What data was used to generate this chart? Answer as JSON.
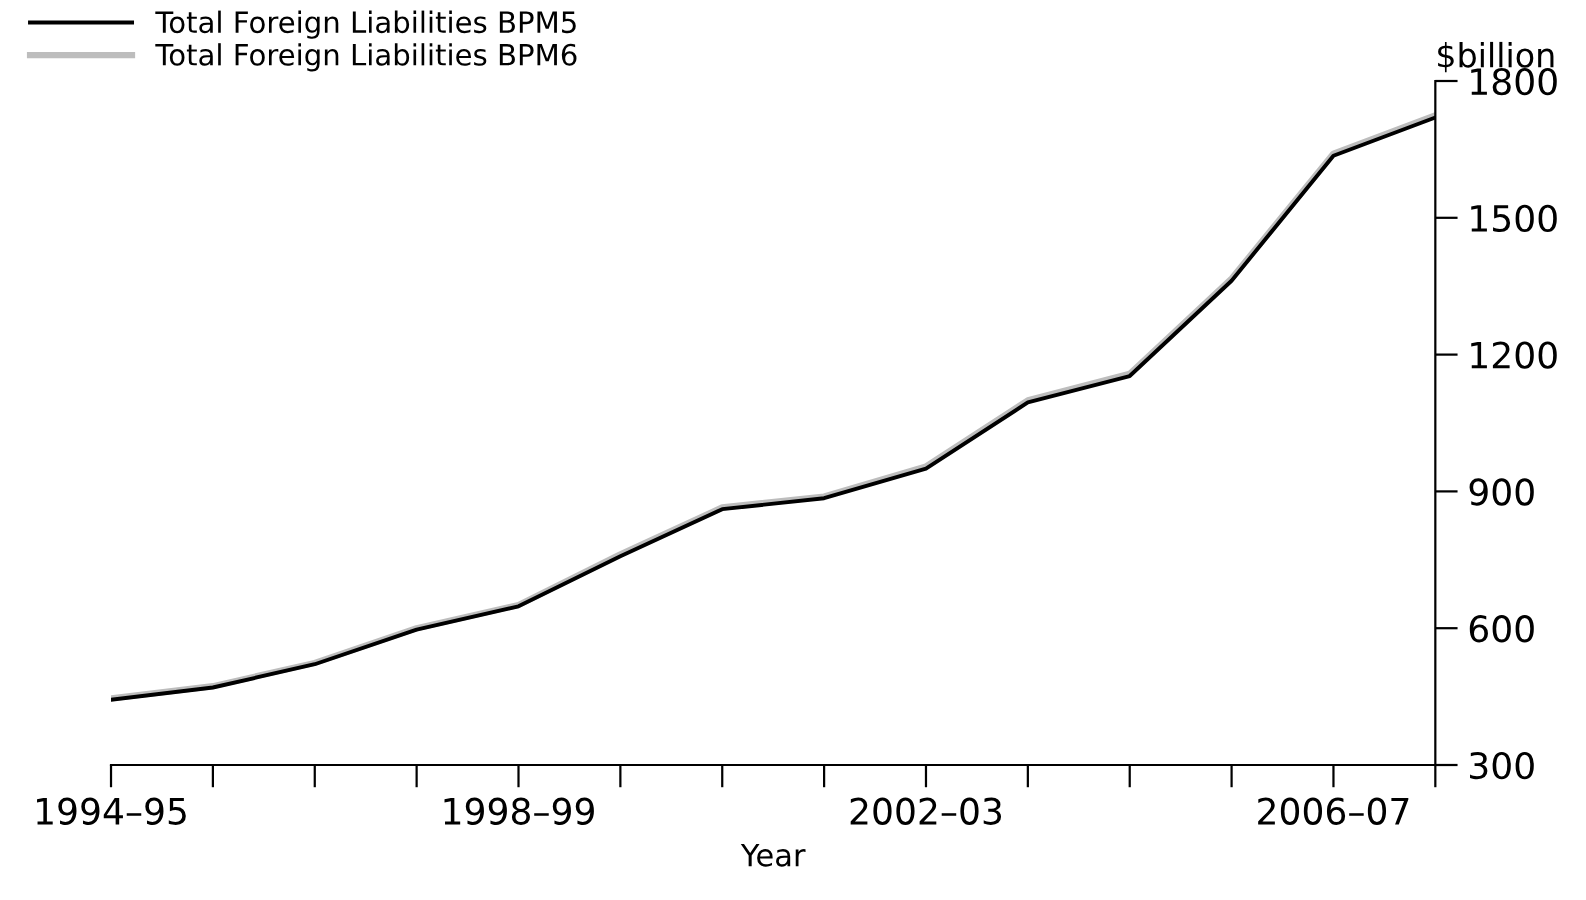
{
  "chart_data": {
    "type": "line",
    "xlabel": "Year",
    "ylabel": "$billion",
    "categories": [
      "1994–95",
      null,
      null,
      null,
      "1998–99",
      null,
      null,
      null,
      "2002–03",
      null,
      null,
      null,
      "2006–07",
      null
    ],
    "series": [
      {
        "name": "Total Foreign Liabilities BPM5",
        "color": "#000000",
        "values": [
          443,
          470,
          521,
          597,
          648,
          758,
          861,
          885,
          950,
          1095,
          1153,
          1362,
          1636,
          1720
        ]
      },
      {
        "name": "Total Foreign Liabilities BPM6",
        "color": "#bdbdbd",
        "values": [
          446,
          473,
          524,
          600,
          651,
          762,
          865,
          889,
          955,
          1100,
          1158,
          1367,
          1641,
          1725
        ]
      }
    ],
    "ylim": [
      300,
      1800
    ],
    "yticks": [
      300,
      600,
      900,
      1200,
      1500,
      1800
    ],
    "grid": false,
    "legend": "top left",
    "marker": "none",
    "line_style": "solid"
  }
}
